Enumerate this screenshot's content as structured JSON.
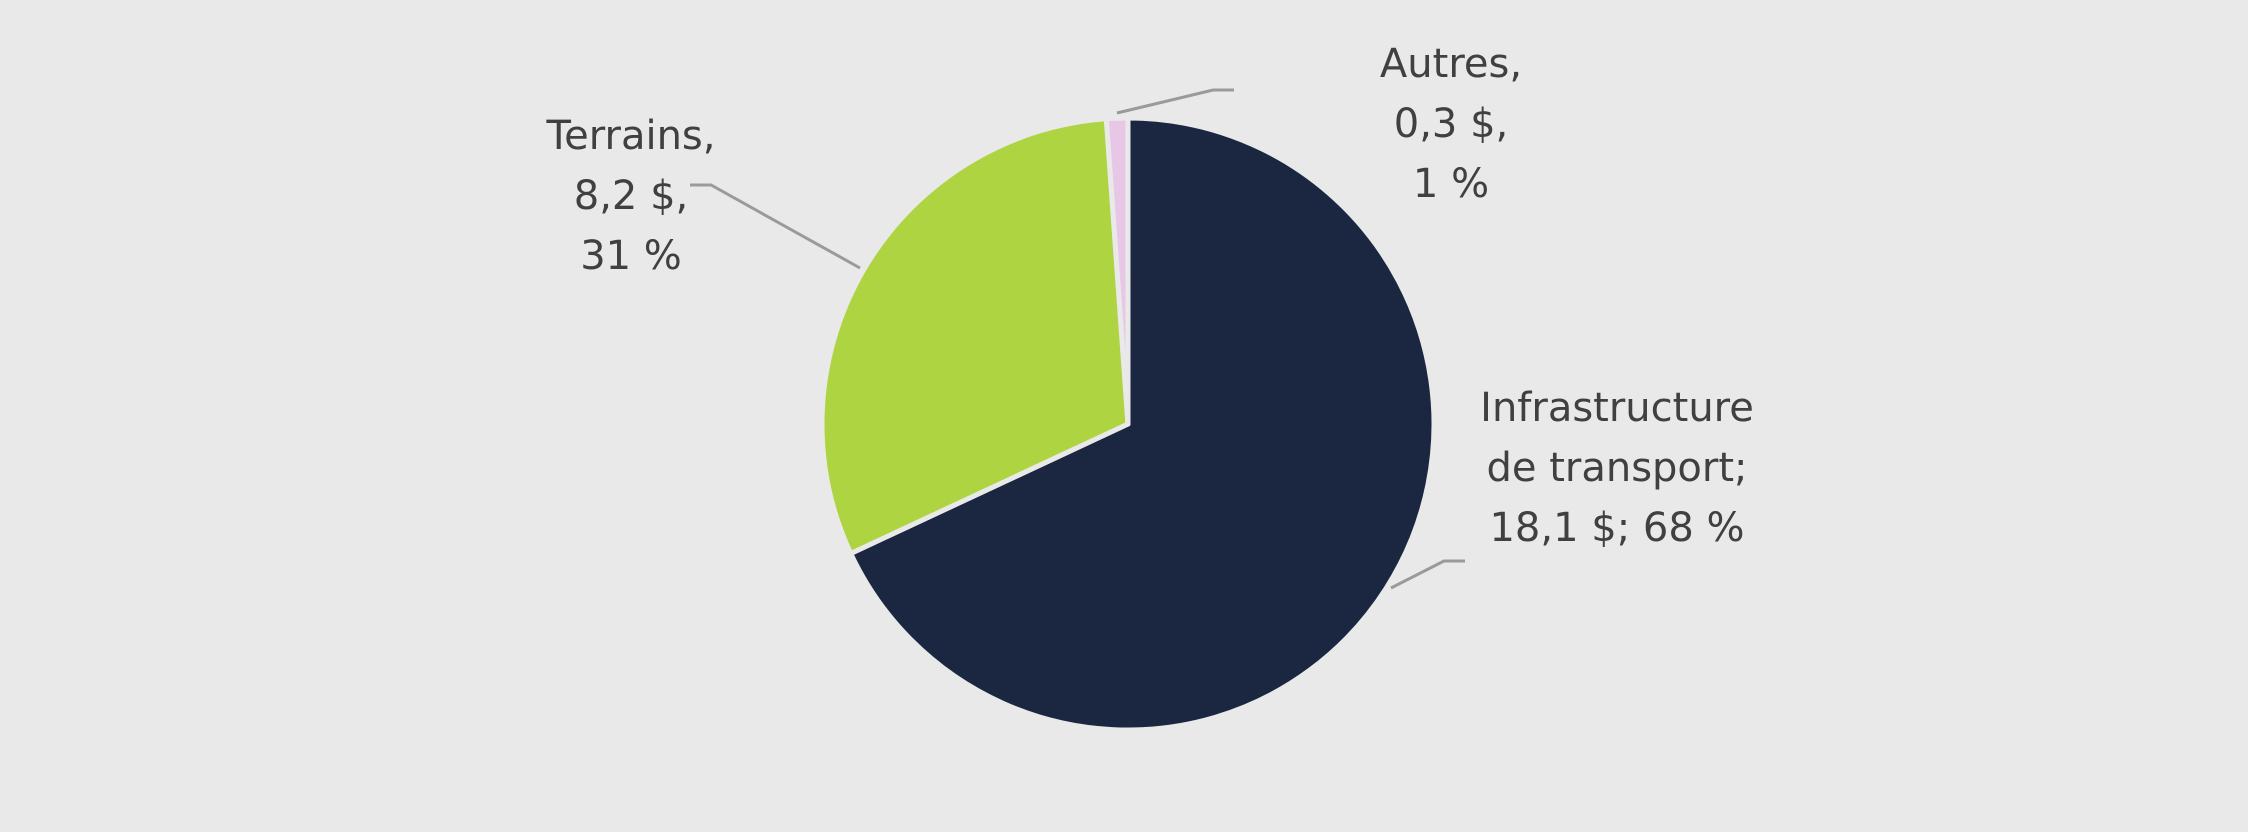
{
  "chart_data": {
    "type": "pie",
    "values": [
      18.1,
      8.2,
      0.3
    ],
    "colors": [
      "#1b2741",
      "#aed442",
      "#e8c6e6"
    ],
    "label_lines": [
      [
        "Infrastructure",
        "de transport;",
        "18,1 $; 68 %"
      ],
      [
        "Terrains,",
        "8,2 $,",
        "31 %"
      ],
      [
        "Autres,",
        "0,3 $,",
        "1 %"
      ]
    ]
  }
}
